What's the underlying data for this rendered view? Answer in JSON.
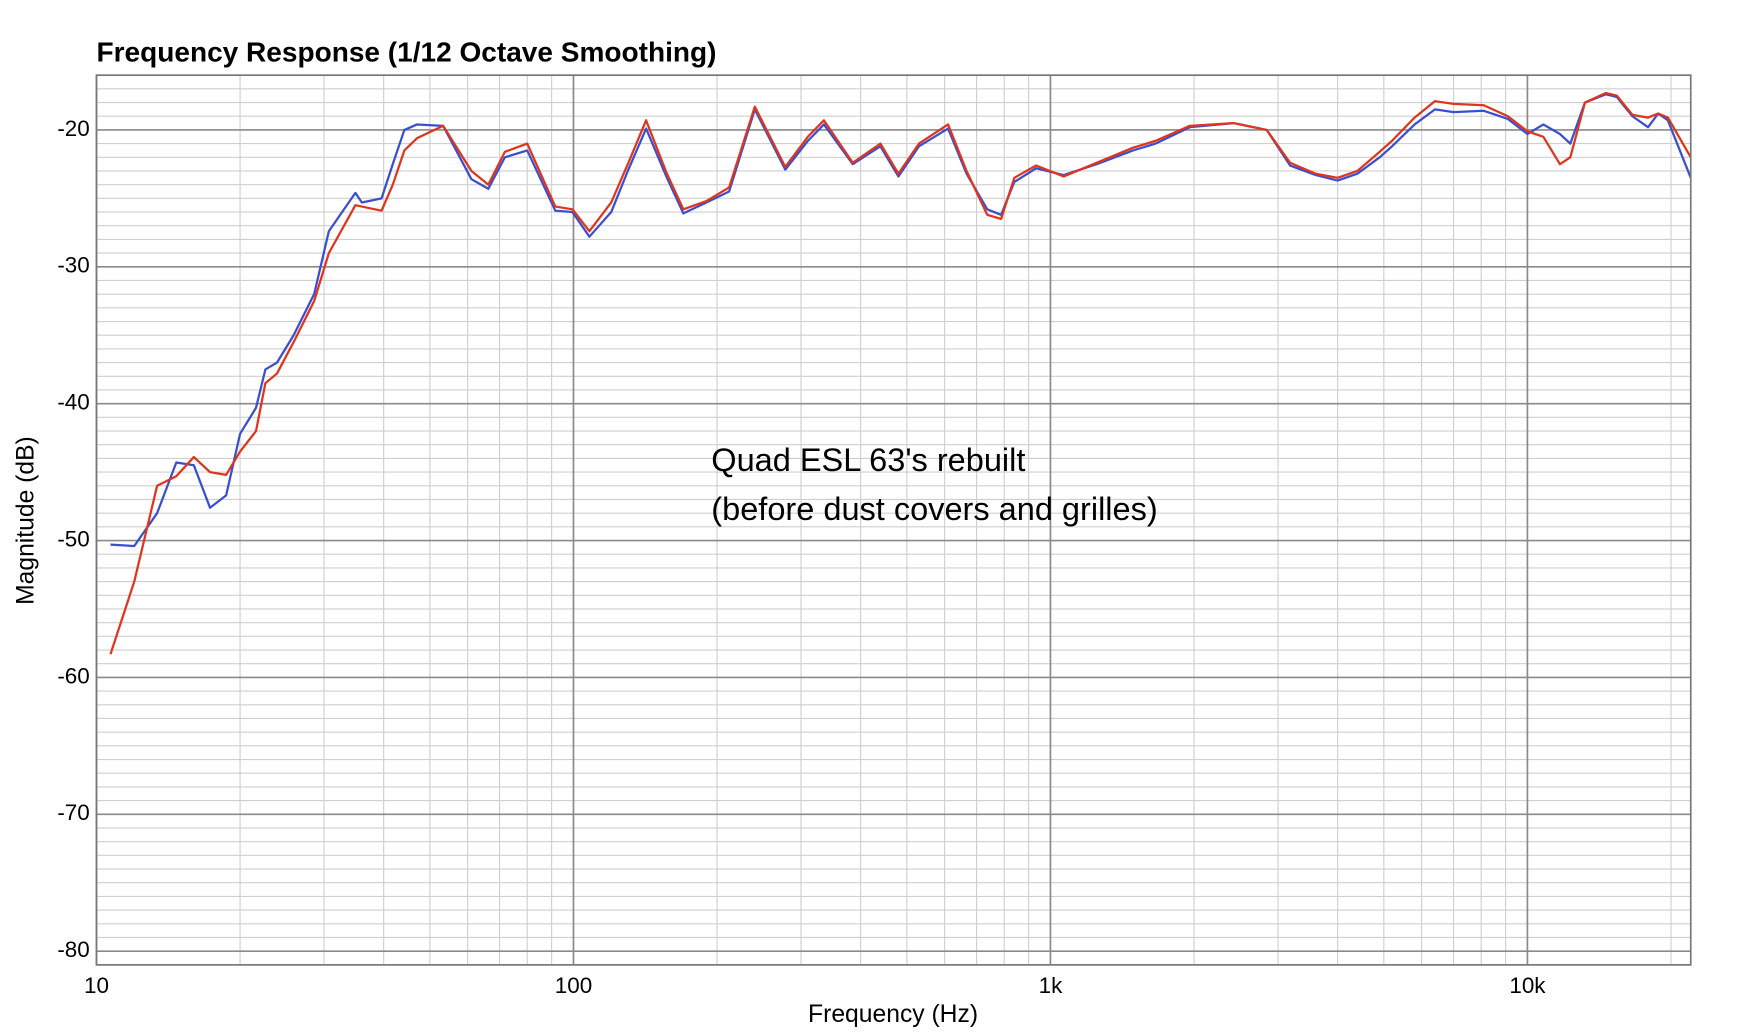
{
  "chart_data": {
    "type": "line",
    "title": "Frequency Response (1/12 Octave Smoothing)",
    "x_label": "Frequency (Hz)",
    "y_label": "Magnitude (dB)",
    "annotation": [
      "Quad ESL 63's rebuilt",
      "(before dust covers and grilles)"
    ],
    "x_scale": "log",
    "grid": true,
    "minor_grid": true,
    "xlim": [
      10,
      22000
    ],
    "ylim": [
      -81,
      -16
    ],
    "xticks": [
      10,
      100,
      {
        "value": 1000,
        "label": "1k"
      },
      {
        "value": 10000,
        "label": "10k"
      }
    ],
    "yticks": [
      -20,
      -30,
      -40,
      -50,
      -60,
      -70,
      -80
    ],
    "x": [
      10.7,
      12,
      13.4,
      14.7,
      16,
      17.3,
      18.7,
      20,
      21.6,
      22.6,
      23.9,
      25.9,
      28.6,
      30.7,
      34.9,
      36,
      39.6,
      41.8,
      44.2,
      47,
      53.3,
      61.1,
      66.3,
      71.8,
      80,
      91.6,
      99.5,
      108,
      120,
      130,
      142,
      157,
      170,
      190,
      212,
      240,
      278,
      310,
      335,
      385,
      440,
      480,
      530,
      610,
      667,
      737,
      788,
      840,
      933,
      1066,
      1250,
      1490,
      1660,
      1960,
      2420,
      2840,
      3180,
      3600,
      4000,
      4400,
      4900,
      5200,
      5800,
      6400,
      7000,
      8100,
      9100,
      10000,
      10800,
      11700,
      12300,
      13200,
      14600,
      15400,
      16600,
      17900,
      18800,
      19700,
      22000
    ],
    "series": [
      {
        "color": "#3a4fd0",
        "values": [
          -50.3,
          -50.4,
          -48,
          -44.3,
          -44.5,
          -47.6,
          -46.7,
          -42.2,
          -40.3,
          -37.5,
          -37,
          -35,
          -32,
          -27.4,
          -24.6,
          -25.3,
          -25,
          -22.5,
          -20,
          -19.6,
          -19.7,
          -23.6,
          -24.3,
          -22,
          -21.5,
          -25.9,
          -26,
          -27.8,
          -26,
          -23,
          -19.9,
          -23.5,
          -26.1,
          -25.3,
          -24.5,
          -18.5,
          -22.9,
          -20.8,
          -19.6,
          -22.5,
          -21.2,
          -23.4,
          -21.2,
          -19.9,
          -23.2,
          -25.8,
          -26.2,
          -23.8,
          -22.8,
          -23.3,
          -22.5,
          -21.5,
          -21,
          -19.8,
          -19.5,
          -20,
          -22.6,
          -23.3,
          -23.7,
          -23.2,
          -22,
          -21.2,
          -19.6,
          -18.5,
          -18.7,
          -18.6,
          -19.2,
          -20.3,
          -19.6,
          -20.3,
          -21,
          -18,
          -17.4,
          -17.6,
          -19,
          -19.8,
          -18.8,
          -19.3,
          -23.5
        ]
      },
      {
        "color": "#e0341c",
        "values": [
          -58.3,
          -53,
          -46,
          -45.3,
          -43.9,
          -45,
          -45.2,
          -43.5,
          -42,
          -38.5,
          -37.8,
          -35.5,
          -32.5,
          -29,
          -25.5,
          -25.6,
          -25.9,
          -24,
          -21.5,
          -20.6,
          -19.7,
          -23,
          -24,
          -21.6,
          -21,
          -25.6,
          -25.8,
          -27.4,
          -25.3,
          -22.5,
          -19.3,
          -23.2,
          -25.8,
          -25.2,
          -24.2,
          -18.3,
          -22.7,
          -20.5,
          -19.3,
          -22.4,
          -21,
          -23.2,
          -21,
          -19.6,
          -23,
          -26.2,
          -26.5,
          -23.5,
          -22.6,
          -23.4,
          -22.4,
          -21.3,
          -20.8,
          -19.7,
          -19.5,
          -20,
          -22.4,
          -23.2,
          -23.5,
          -23,
          -21.6,
          -20.8,
          -19.1,
          -17.9,
          -18.1,
          -18.2,
          -19,
          -20.1,
          -20.5,
          -22.5,
          -22,
          -18,
          -17.3,
          -17.5,
          -18.9,
          -19.1,
          -18.8,
          -19.1,
          -22
        ]
      }
    ]
  }
}
